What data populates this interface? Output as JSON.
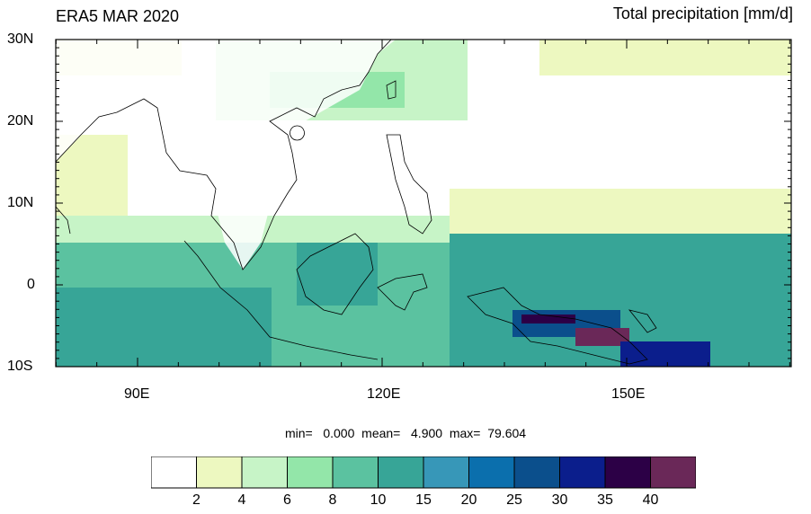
{
  "title_left": "ERA5 MAR 2020",
  "title_right": "Total precipitation [mm/d]",
  "lat_labels": [
    "30N",
    "20N",
    "10N",
    "0",
    "10S"
  ],
  "lon_labels": [
    "90E",
    "120E",
    "150E"
  ],
  "stats": {
    "text": "min=   0.000  mean=   4.900  max=  79.604",
    "min": 0.0,
    "mean": 4.9,
    "max": 79.604
  },
  "colorbar": {
    "colors": [
      "#ffffff",
      "#edf8c0",
      "#c7f4c7",
      "#93e6a9",
      "#5bc2a0",
      "#37a597",
      "#3797b8",
      "#0b6fad",
      "#0b4f8c",
      "#0b1e8c",
      "#2c0046",
      "#6a2858"
    ],
    "labels": [
      "2",
      "4",
      "6",
      "8",
      "10",
      "15",
      "20",
      "25",
      "30",
      "35",
      "40"
    ]
  }
}
